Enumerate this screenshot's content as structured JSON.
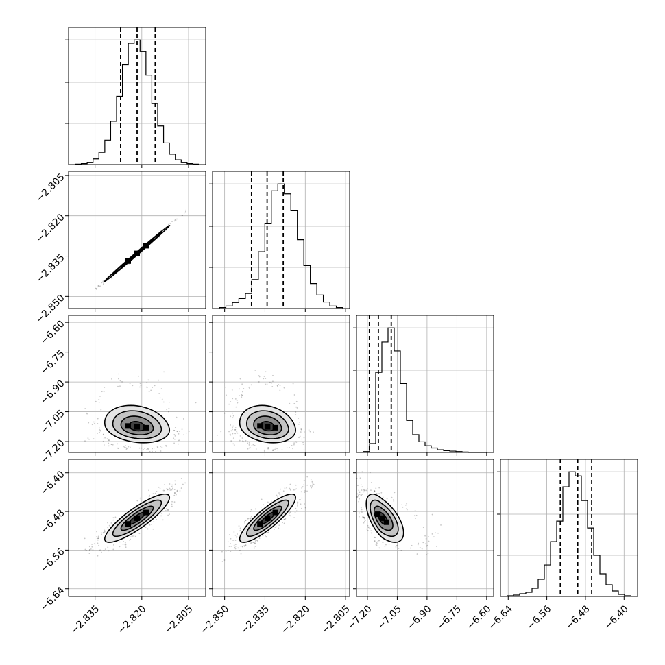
{
  "chart_data": {
    "type": "corner",
    "parameters": [
      {
        "ticks": [
          "−2.835",
          "−2.820",
          "−2.805"
        ],
        "tick_values": [
          -2.835,
          -2.82,
          -2.805
        ],
        "range": [
          -2.8435,
          -2.7995
        ],
        "mode": -2.8215,
        "sigma": 0.0052,
        "skew": 0,
        "quantiles": [
          -2.8268,
          -2.8215,
          -2.8157
        ],
        "hist_counts": [
          1,
          2,
          4,
          12,
          26,
          52,
          92,
          145,
          212,
          258,
          265,
          240,
          190,
          130,
          82,
          46,
          22,
          10,
          4,
          2,
          1
        ]
      },
      {
        "ticks": [
          "−2.850",
          "−2.835",
          "−2.820",
          "−2.805"
        ],
        "tick_values": [
          -2.85,
          -2.835,
          -2.82,
          -2.805
        ],
        "range": [
          -2.8545,
          -2.8035
        ],
        "mode": -2.834,
        "sigma": 0.0052,
        "skew": 0,
        "quantiles": [
          -2.84,
          -2.8342,
          -2.8282
        ],
        "hist_counts": [
          2,
          5,
          12,
          20,
          30,
          58,
          114,
          170,
          236,
          250,
          230,
          196,
          138,
          86,
          50,
          27,
          13,
          5,
          2
        ]
      },
      {
        "ticks": [
          "−7.20",
          "−7.05",
          "−6.90",
          "−6.75",
          "−6.60"
        ],
        "tick_values": [
          -7.2,
          -7.05,
          -6.9,
          -6.75,
          -6.6
        ],
        "range": [
          -7.255,
          -6.565
        ],
        "mode": -7.14,
        "sigma": 0.04,
        "skew": 2.4,
        "quantiles": [
          -7.19,
          -7.145,
          -7.08
        ],
        "hist_counts": [
          2,
          20,
          180,
          248,
          280,
          228,
          155,
          72,
          40,
          24,
          15,
          10,
          6,
          4,
          3,
          2,
          1,
          0,
          0,
          0
        ]
      },
      {
        "ticks": [
          "−6.64",
          "−6.56",
          "−6.48",
          "−6.40"
        ],
        "tick_values": [
          -6.64,
          -6.56,
          -6.48,
          -6.4
        ],
        "range": [
          -6.656,
          -6.372
        ],
        "mode": -6.494,
        "sigma": 0.025,
        "skew": 0,
        "quantiles": [
          -6.532,
          -6.496,
          -6.467
        ],
        "hist_counts": [
          1,
          2,
          4,
          6,
          12,
          25,
          46,
          80,
          110,
          160,
          182,
          176,
          140,
          100,
          60,
          33,
          17,
          8,
          3,
          1
        ]
      }
    ],
    "pairs": [
      {
        "row": 1,
        "col": 0,
        "correlation": 0.998
      },
      {
        "row": 2,
        "col": 0,
        "correlation": -0.2
      },
      {
        "row": 2,
        "col": 1,
        "correlation": -0.2
      },
      {
        "row": 3,
        "col": 0,
        "correlation": 0.86
      },
      {
        "row": 3,
        "col": 1,
        "correlation": 0.86
      },
      {
        "row": 3,
        "col": 2,
        "correlation": -0.6
      }
    ],
    "hist_ticks": [
      0.33,
      0.66,
      1.0
    ],
    "contour_levels": [
      0.5,
      1.0,
      1.5,
      2.0
    ],
    "grid": true,
    "colors": {
      "line": "#000000",
      "grid": "#b0b0b0",
      "sample": "#8a8a8a",
      "background": "#ffffff"
    }
  }
}
